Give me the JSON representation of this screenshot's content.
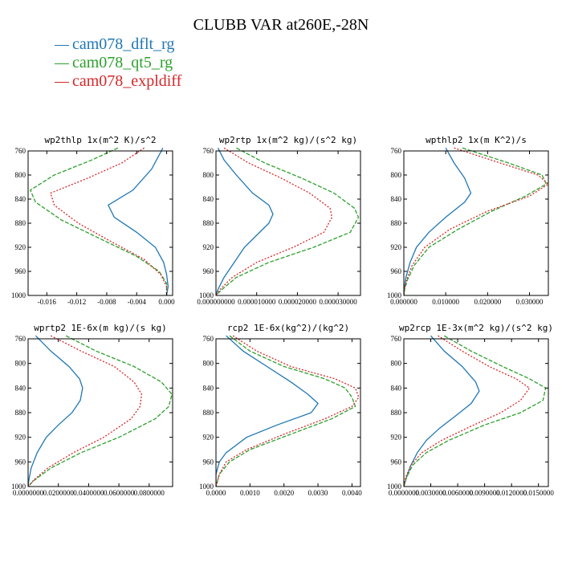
{
  "page_title": "CLUBB VAR at260E,-28N",
  "legend": [
    {
      "label": "cam078_dflt_rg",
      "color": "#1f77b4"
    },
    {
      "label": "cam078_qt5_rg",
      "color": "#2ca02c"
    },
    {
      "label": "cam078_expldiff",
      "color": "#d62728"
    }
  ],
  "chart_data": [
    {
      "type": "line",
      "title": "wp2thlp  1x(m^2 K)/s^2",
      "xlim": [
        -0.0185,
        0.0008
      ],
      "ylim": [
        760,
        1000
      ],
      "xticks": [
        -0.016,
        -0.012,
        -0.008,
        -0.004,
        0.0
      ],
      "xtick_labels": [
        "-0.016",
        "-0.012",
        "-0.008",
        "-0.004",
        "0.000"
      ],
      "yticks": [
        760,
        800,
        840,
        880,
        920,
        960,
        1000
      ],
      "ytick_labels": [
        "760",
        "800",
        "840",
        "880",
        "920",
        "960",
        "1000"
      ],
      "series": [
        {
          "name": "cam078_dflt_rg",
          "y": [
            755,
            790,
            825,
            850,
            870,
            895,
            920,
            945,
            965,
            985,
            1000
          ],
          "x": [
            -0.0005,
            -0.002,
            -0.0045,
            -0.0078,
            -0.007,
            -0.004,
            -0.0015,
            -0.0004,
            0.0,
            0.0002,
            0.0
          ]
        },
        {
          "name": "cam078_qt5_rg",
          "y": [
            755,
            775,
            800,
            825,
            845,
            875,
            905,
            935,
            960,
            980,
            1000
          ],
          "x": [
            -0.0065,
            -0.01,
            -0.015,
            -0.0182,
            -0.0175,
            -0.014,
            -0.009,
            -0.004,
            -0.001,
            0.0,
            0.0
          ]
        },
        {
          "name": "cam078_expldiff",
          "y": [
            755,
            780,
            805,
            830,
            850,
            880,
            910,
            940,
            965,
            985,
            1000
          ],
          "x": [
            -0.003,
            -0.006,
            -0.0105,
            -0.0155,
            -0.015,
            -0.0118,
            -0.0075,
            -0.003,
            -0.0008,
            0.0,
            0.0
          ]
        }
      ]
    },
    {
      "type": "line",
      "title": "wp2rtp  1x(m^2 kg)/(s^2 kg)",
      "xlim": [
        0.0,
        3.55e-05
      ],
      "ylim": [
        760,
        1000
      ],
      "xticks": [
        0.0,
        1e-05,
        2e-05,
        3e-05
      ],
      "xtick_labels": [
        "0.000000000",
        "0.000010000",
        "0.000020000",
        "0.000030000"
      ],
      "yticks": [
        760,
        800,
        840,
        880,
        920,
        960,
        1000
      ],
      "ytick_labels": [
        "760",
        "800",
        "840",
        "880",
        "920",
        "960",
        "1000"
      ],
      "series": [
        {
          "name": "cam078_dflt_rg",
          "y": [
            755,
            775,
            800,
            830,
            850,
            865,
            880,
            900,
            920,
            945,
            970,
            990,
            1000
          ],
          "x": [
            5e-07,
            2e-06,
            5e-06,
            9e-06,
            1.3e-05,
            1.4e-05,
            1.3e-05,
            1e-05,
            7e-06,
            4.5e-06,
            2e-06,
            5e-07,
            0.0
          ]
        },
        {
          "name": "cam078_qt5_rg",
          "y": [
            755,
            780,
            805,
            830,
            855,
            870,
            895,
            920,
            945,
            970,
            990,
            1000
          ],
          "x": [
            5e-06,
            1.2e-05,
            2.1e-05,
            2.9e-05,
            3.4e-05,
            3.5e-05,
            3.3e-05,
            2.4e-05,
            1.3e-05,
            5e-06,
            1.5e-06,
            0.0
          ]
        },
        {
          "name": "cam078_expldiff",
          "y": [
            755,
            780,
            805,
            830,
            855,
            870,
            895,
            920,
            945,
            970,
            990,
            1000
          ],
          "x": [
            2e-06,
            8e-06,
            1.6e-05,
            2.3e-05,
            2.8e-05,
            2.85e-05,
            2.65e-05,
            1.9e-05,
            1e-05,
            4e-06,
            1e-06,
            0.0
          ]
        }
      ]
    },
    {
      "type": "line",
      "title": "wpthlp2  1x(m K^2)/s",
      "xlim": [
        0.0,
        0.0345
      ],
      "ylim": [
        760,
        1000
      ],
      "xticks": [
        0.0,
        0.01,
        0.02,
        0.03
      ],
      "xtick_labels": [
        "0.000000",
        "0.010000",
        "0.020000",
        "0.030000"
      ],
      "yticks": [
        760,
        800,
        840,
        880,
        920,
        960,
        1000
      ],
      "ytick_labels": [
        "760",
        "800",
        "840",
        "880",
        "920",
        "960",
        "1000"
      ],
      "series": [
        {
          "name": "cam078_dflt_rg",
          "y": [
            755,
            780,
            805,
            830,
            845,
            870,
            895,
            920,
            945,
            970,
            990,
            1000
          ],
          "x": [
            0.01,
            0.012,
            0.0145,
            0.016,
            0.0145,
            0.01,
            0.006,
            0.003,
            0.0015,
            0.0005,
            0.0001,
            0.0
          ]
        },
        {
          "name": "cam078_qt5_rg",
          "y": [
            755,
            780,
            800,
            815,
            835,
            860,
            890,
            920,
            950,
            975,
            990,
            1000
          ],
          "x": [
            0.014,
            0.025,
            0.033,
            0.034,
            0.029,
            0.021,
            0.013,
            0.006,
            0.0025,
            0.0008,
            0.0002,
            0.0
          ]
        },
        {
          "name": "cam078_expldiff",
          "y": [
            755,
            780,
            800,
            815,
            835,
            860,
            890,
            920,
            950,
            975,
            990,
            1000
          ],
          "x": [
            0.012,
            0.023,
            0.032,
            0.0345,
            0.03,
            0.02,
            0.011,
            0.005,
            0.002,
            0.0006,
            0.0001,
            0.0
          ]
        }
      ]
    },
    {
      "type": "line",
      "title": "wprtp2  1E-6x(m kg)/(s kg)",
      "xlim": [
        0.0,
        0.0955
      ],
      "ylim": [
        760,
        1000
      ],
      "xticks": [
        0.0,
        0.02,
        0.04,
        0.06,
        0.08
      ],
      "xtick_labels": [
        "0.0000000",
        "0.0200000",
        "0.0400000",
        "0.0600000",
        "0.0800000"
      ],
      "yticks": [
        760,
        800,
        840,
        880,
        920,
        960,
        1000
      ],
      "ytick_labels": [
        "760",
        "800",
        "840",
        "880",
        "920",
        "960",
        "1000"
      ],
      "series": [
        {
          "name": "cam078_dflt_rg",
          "y": [
            755,
            780,
            805,
            825,
            840,
            860,
            880,
            900,
            920,
            945,
            970,
            990,
            1000
          ],
          "x": [
            0.005,
            0.015,
            0.027,
            0.034,
            0.036,
            0.0345,
            0.029,
            0.02,
            0.012,
            0.006,
            0.002,
            0.0005,
            0.0
          ]
        },
        {
          "name": "cam078_qt5_rg",
          "y": [
            755,
            780,
            805,
            830,
            850,
            870,
            890,
            920,
            945,
            970,
            990,
            1000
          ],
          "x": [
            0.025,
            0.045,
            0.07,
            0.088,
            0.095,
            0.093,
            0.084,
            0.06,
            0.035,
            0.015,
            0.004,
            0.0
          ]
        },
        {
          "name": "cam078_expldiff",
          "y": [
            755,
            780,
            805,
            830,
            850,
            870,
            890,
            920,
            945,
            970,
            990,
            1000
          ],
          "x": [
            0.015,
            0.035,
            0.057,
            0.07,
            0.075,
            0.074,
            0.068,
            0.05,
            0.03,
            0.013,
            0.0035,
            0.0
          ]
        }
      ]
    },
    {
      "type": "line",
      "title": "rcp2  1E-6x(kg^2)/(kg^2)",
      "xlim": [
        0.0,
        0.00425
      ],
      "ylim": [
        760,
        1000
      ],
      "xticks": [
        0.0,
        0.001,
        0.002,
        0.003,
        0.004
      ],
      "xtick_labels": [
        "0.0000",
        "0.0010",
        "0.0020",
        "0.0030",
        "0.0040"
      ],
      "yticks": [
        760,
        800,
        840,
        880,
        920,
        960,
        1000
      ],
      "ytick_labels": [
        "760",
        "800",
        "840",
        "880",
        "920",
        "960",
        "1000"
      ],
      "series": [
        {
          "name": "cam078_dflt_rg",
          "y": [
            755,
            780,
            805,
            830,
            850,
            865,
            880,
            900,
            920,
            945,
            960,
            980,
            1000
          ],
          "x": [
            0.0003,
            0.0008,
            0.0015,
            0.0022,
            0.0027,
            0.003,
            0.0028,
            0.0018,
            0.0009,
            0.0003,
            0.0001,
            0.0,
            0.0
          ]
        },
        {
          "name": "cam078_qt5_rg",
          "y": [
            755,
            780,
            805,
            825,
            840,
            855,
            870,
            890,
            915,
            940,
            960,
            980,
            1000
          ],
          "x": [
            0.0004,
            0.001,
            0.002,
            0.0032,
            0.0038,
            0.004,
            0.0041,
            0.0034,
            0.0022,
            0.001,
            0.0004,
            0.0001,
            0.0
          ]
        },
        {
          "name": "cam078_expldiff",
          "y": [
            755,
            780,
            805,
            825,
            840,
            855,
            870,
            890,
            915,
            940,
            960,
            980,
            1000
          ],
          "x": [
            0.0005,
            0.0012,
            0.0022,
            0.0035,
            0.0041,
            0.0042,
            0.004,
            0.0032,
            0.002,
            0.0009,
            0.0003,
            0.0001,
            0.0
          ]
        }
      ]
    },
    {
      "type": "line",
      "title": "wp2rcp  1E-3x(m^2 kg)/(s^2 kg)",
      "xlim": [
        0.0,
        0.0161
      ],
      "ylim": [
        760,
        1000
      ],
      "xticks": [
        0.0,
        0.003,
        0.006,
        0.009,
        0.012,
        0.015
      ],
      "xtick_labels": [
        "0.0000000",
        "0.0030000",
        "0.0060000",
        "0.0090000",
        "0.0120000",
        "0.0150000"
      ],
      "yticks": [
        760,
        800,
        840,
        880,
        920,
        960,
        1000
      ],
      "ytick_labels": [
        "760",
        "800",
        "840",
        "880",
        "920",
        "960",
        "1000"
      ],
      "series": [
        {
          "name": "cam078_dflt_rg",
          "y": [
            755,
            780,
            805,
            830,
            845,
            865,
            885,
            905,
            925,
            945,
            965,
            985,
            1000
          ],
          "x": [
            0.003,
            0.0045,
            0.0065,
            0.008,
            0.0084,
            0.0075,
            0.0058,
            0.004,
            0.0025,
            0.0015,
            0.0008,
            0.0003,
            0.0
          ]
        },
        {
          "name": "cam078_qt5_rg",
          "y": [
            755,
            780,
            805,
            825,
            840,
            860,
            880,
            900,
            925,
            945,
            965,
            985,
            1000
          ],
          "x": [
            0.0045,
            0.0075,
            0.011,
            0.014,
            0.0158,
            0.0155,
            0.013,
            0.009,
            0.005,
            0.0025,
            0.001,
            0.0003,
            0.0
          ]
        },
        {
          "name": "cam078_expldiff",
          "y": [
            755,
            780,
            805,
            825,
            840,
            860,
            880,
            900,
            925,
            945,
            965,
            985,
            1000
          ],
          "x": [
            0.0038,
            0.0065,
            0.0095,
            0.0125,
            0.014,
            0.013,
            0.0108,
            0.0078,
            0.0042,
            0.002,
            0.0008,
            0.0002,
            0.0
          ]
        }
      ]
    }
  ]
}
